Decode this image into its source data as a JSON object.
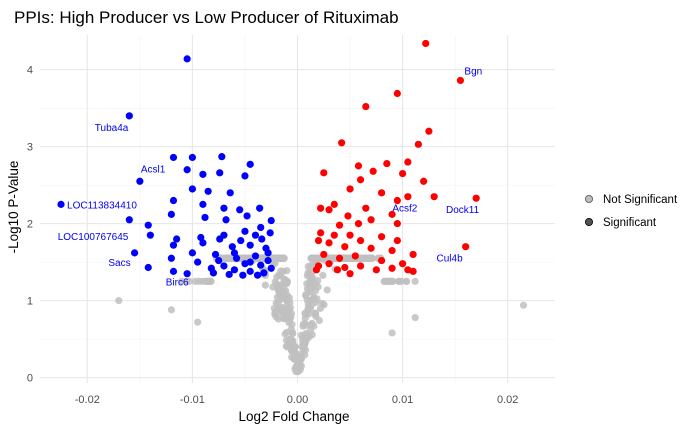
{
  "chart_data": {
    "type": "scatter",
    "title": "PPIs: High Producer vs Low Producer of Rituximab",
    "xlabel": "Log2 Fold Change",
    "ylabel": "-Log10 P-Value",
    "xlim": [
      -0.0245,
      0.0245
    ],
    "ylim": [
      -0.07,
      4.45
    ],
    "x_ticks": [
      -0.02,
      -0.01,
      0.0,
      0.01,
      0.02
    ],
    "x_tick_labels": [
      "-0.02",
      "-0.01",
      "0.00",
      "0.01",
      "0.02"
    ],
    "y_ticks": [
      0,
      1,
      2,
      3,
      4
    ],
    "y_tick_labels": [
      "0",
      "1",
      "2",
      "3",
      "4"
    ],
    "grid": true,
    "legend_position": "right",
    "legend": [
      {
        "label": "Not Significant",
        "color": "#bdbdbd"
      },
      {
        "label": "Significant",
        "color": "#525252"
      }
    ],
    "colors": {
      "not_significant": "#c0c0c0",
      "down": "#0000ff",
      "up": "#ff0000",
      "label": "#0000ee"
    },
    "series": [
      {
        "group": "down",
        "points": [
          [
            -0.0105,
            4.14
          ],
          [
            -0.016,
            3.4
          ],
          [
            -0.0118,
            2.86
          ],
          [
            -0.01,
            2.86
          ],
          [
            -0.0072,
            2.87
          ],
          [
            -0.015,
            2.55
          ],
          [
            -0.0045,
            2.77
          ],
          [
            -0.0225,
            2.25
          ],
          [
            -0.0105,
            2.7
          ],
          [
            -0.009,
            2.64
          ],
          [
            -0.0074,
            2.66
          ],
          [
            -0.005,
            2.62
          ],
          [
            -0.01,
            2.45
          ],
          [
            -0.0085,
            2.42
          ],
          [
            -0.0064,
            2.4
          ],
          [
            -0.0118,
            2.3
          ],
          [
            -0.009,
            2.25
          ],
          [
            -0.007,
            2.2
          ],
          [
            -0.0055,
            2.18
          ],
          [
            -0.0036,
            2.2
          ],
          [
            -0.012,
            2.12
          ],
          [
            -0.0088,
            2.08
          ],
          [
            -0.0068,
            2.05
          ],
          [
            -0.0048,
            2.1
          ],
          [
            -0.0025,
            2.04
          ],
          [
            -0.016,
            2.05
          ],
          [
            -0.0142,
            1.98
          ],
          [
            -0.0115,
            1.8
          ],
          [
            -0.0092,
            1.82
          ],
          [
            -0.0074,
            1.8
          ],
          [
            -0.0054,
            1.78
          ],
          [
            -0.0034,
            1.8
          ],
          [
            -0.0026,
            1.88
          ],
          [
            -0.014,
            1.85
          ],
          [
            -0.0118,
            1.72
          ],
          [
            -0.009,
            1.75
          ],
          [
            -0.0062,
            1.7
          ],
          [
            -0.0045,
            1.72
          ],
          [
            -0.003,
            1.68
          ],
          [
            -0.0155,
            1.62
          ],
          [
            -0.01,
            1.62
          ],
          [
            -0.0078,
            1.6
          ],
          [
            -0.0058,
            1.55
          ],
          [
            -0.004,
            1.58
          ],
          [
            -0.0028,
            1.52
          ],
          [
            -0.012,
            1.55
          ],
          [
            -0.0095,
            1.5
          ],
          [
            -0.007,
            1.45
          ],
          [
            -0.005,
            1.48
          ],
          [
            -0.0035,
            1.46
          ],
          [
            -0.0025,
            1.42
          ],
          [
            -0.0142,
            1.43
          ],
          [
            -0.0082,
            1.42
          ],
          [
            -0.006,
            1.4
          ],
          [
            -0.0045,
            1.38
          ],
          [
            -0.0032,
            1.36
          ],
          [
            -0.0118,
            1.38
          ],
          [
            -0.0105,
            1.35
          ],
          [
            -0.0065,
            1.34
          ],
          [
            -0.0038,
            1.33
          ],
          [
            -0.0052,
            1.33
          ],
          [
            -0.008,
            1.36
          ],
          [
            -0.0045,
            1.5
          ],
          [
            -0.006,
            1.62
          ],
          [
            -0.0035,
            1.95
          ],
          [
            -0.0028,
            1.62
          ],
          [
            -0.005,
            1.9
          ],
          [
            -0.0075,
            1.52
          ],
          [
            -0.004,
            1.85
          ],
          [
            -0.007,
            1.85
          ]
        ]
      },
      {
        "group": "up",
        "points": [
          [
            0.0122,
            4.34
          ],
          [
            0.0155,
            3.86
          ],
          [
            0.0095,
            3.69
          ],
          [
            0.0065,
            3.52
          ],
          [
            0.0125,
            3.2
          ],
          [
            0.0115,
            3.03
          ],
          [
            0.0042,
            3.05
          ],
          [
            0.0105,
            2.8
          ],
          [
            0.0085,
            2.78
          ],
          [
            0.0058,
            2.75
          ],
          [
            0.0072,
            2.68
          ],
          [
            0.0025,
            2.66
          ],
          [
            0.006,
            2.57
          ],
          [
            0.01,
            2.65
          ],
          [
            0.012,
            2.55
          ],
          [
            0.013,
            2.35
          ],
          [
            0.017,
            2.33
          ],
          [
            0.005,
            2.45
          ],
          [
            0.008,
            2.4
          ],
          [
            0.0095,
            2.3
          ],
          [
            0.0105,
            2.35
          ],
          [
            0.0035,
            2.25
          ],
          [
            0.0065,
            2.2
          ],
          [
            0.0022,
            2.2
          ],
          [
            0.009,
            2.12
          ],
          [
            0.003,
            2.18
          ],
          [
            0.0048,
            2.1
          ],
          [
            0.007,
            2.05
          ],
          [
            0.0058,
            2.0
          ],
          [
            0.0095,
            2.0
          ],
          [
            0.004,
            1.98
          ],
          [
            0.0022,
            1.88
          ],
          [
            0.0035,
            1.85
          ],
          [
            0.005,
            1.85
          ],
          [
            0.008,
            1.83
          ],
          [
            0.0095,
            1.78
          ],
          [
            0.006,
            1.78
          ],
          [
            0.003,
            1.75
          ],
          [
            0.002,
            1.78
          ],
          [
            0.0045,
            1.7
          ],
          [
            0.007,
            1.68
          ],
          [
            0.009,
            1.65
          ],
          [
            0.011,
            1.6
          ],
          [
            0.016,
            1.7
          ],
          [
            0.0025,
            1.6
          ],
          [
            0.004,
            1.55
          ],
          [
            0.0055,
            1.58
          ],
          [
            0.008,
            1.52
          ],
          [
            0.01,
            1.48
          ],
          [
            0.003,
            1.48
          ],
          [
            0.006,
            1.45
          ],
          [
            0.002,
            1.45
          ],
          [
            0.0045,
            1.43
          ],
          [
            0.0105,
            1.4
          ],
          [
            0.0075,
            1.4
          ],
          [
            0.011,
            1.38
          ],
          [
            0.0038,
            1.4
          ],
          [
            0.0018,
            1.4
          ],
          [
            0.005,
            1.35
          ],
          [
            0.009,
            1.42
          ]
        ]
      }
    ],
    "annotations": [
      {
        "text": "Tuba4a",
        "x": -0.016,
        "y": 3.4,
        "ha": "end",
        "dx": -1,
        "dy": 15
      },
      {
        "text": "Acsl1",
        "x": -0.015,
        "y": 2.55,
        "ha": "start",
        "dx": 1,
        "dy": -9
      },
      {
        "text": "LOC113834410",
        "x": -0.0225,
        "y": 2.25,
        "ha": "start",
        "dx": 6,
        "dy": 4
      },
      {
        "text": "LOC100767645",
        "x": -0.016,
        "y": 2.05,
        "ha": "end",
        "dx": -1,
        "dy": 20
      },
      {
        "text": "Sacs",
        "x": -0.0155,
        "y": 1.62,
        "ha": "end",
        "dx": -4,
        "dy": 13
      },
      {
        "text": "Birc6",
        "x": -0.0105,
        "y": 1.35,
        "ha": "middle",
        "dx": -10,
        "dy": 12
      },
      {
        "text": "Bgn",
        "x": 0.0155,
        "y": 3.86,
        "ha": "start",
        "dx": 4,
        "dy": -6
      },
      {
        "text": "Acsf2",
        "x": 0.0105,
        "y": 2.35,
        "ha": "middle",
        "dx": -3,
        "dy": 15
      },
      {
        "text": "Dock11",
        "x": 0.017,
        "y": 2.33,
        "ha": "end",
        "dx": 3,
        "dy": 15
      },
      {
        "text": "Cul4b",
        "x": 0.016,
        "y": 1.7,
        "ha": "end",
        "dx": -3,
        "dy": 15
      }
    ]
  }
}
